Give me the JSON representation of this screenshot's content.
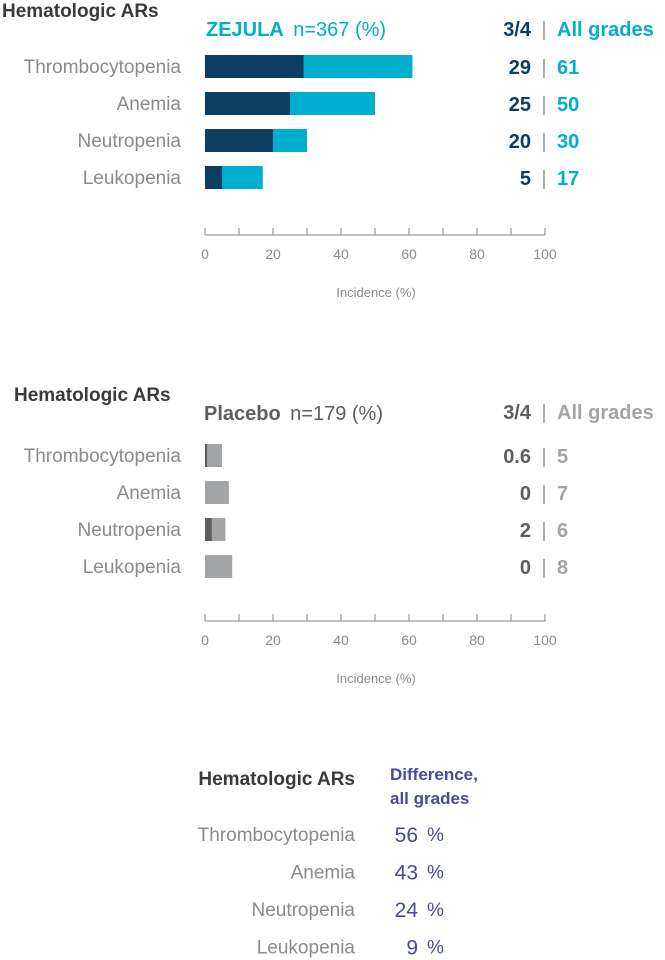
{
  "colors": {
    "zejula_grade34": "#0c3d63",
    "zejula_all": "#00aece",
    "placebo_grade34": "#5e5e5e",
    "placebo_all": "#a3a4a6",
    "category_text": "#8a8a8a",
    "header_text": "#3a3a3a",
    "difference": "#4a4a96"
  },
  "chart_data": [
    {
      "type": "bar",
      "orientation": "horizontal",
      "stacked": "overlay",
      "header": "Hematologic ARs",
      "group_label": "ZEJULA",
      "group_n": "n=367 (%)",
      "col_grade34": "3/4",
      "col_sep": "|",
      "col_all": "All grades",
      "categories": [
        "Thrombocytopenia",
        "Anemia",
        "Neutropenia",
        "Leukopenia"
      ],
      "series": [
        {
          "name": "3/4",
          "values": [
            29,
            25,
            20,
            5
          ],
          "labels": [
            "29",
            "25",
            "20",
            "5"
          ]
        },
        {
          "name": "All grades",
          "values": [
            61,
            50,
            30,
            17
          ],
          "labels": [
            "61",
            "50",
            "30",
            "17"
          ]
        }
      ],
      "xlim": [
        0,
        100
      ],
      "xticks": [
        "0",
        "20",
        "40",
        "60",
        "80",
        "100"
      ],
      "xlabel": "Incidence (%)",
      "grid": false
    },
    {
      "type": "bar",
      "orientation": "horizontal",
      "stacked": "overlay",
      "header": "Hematologic ARs",
      "group_label": "Placebo",
      "group_n": "n=179 (%)",
      "col_grade34": "3/4",
      "col_sep": "|",
      "col_all": "All grades",
      "categories": [
        "Thrombocytopenia",
        "Anemia",
        "Neutropenia",
        "Leukopenia"
      ],
      "series": [
        {
          "name": "3/4",
          "values": [
            0.6,
            0,
            2,
            0
          ],
          "labels": [
            "0.6",
            "0",
            "2",
            "0"
          ]
        },
        {
          "name": "All grades",
          "values": [
            5,
            7,
            6,
            8
          ],
          "labels": [
            "5",
            "7",
            "6",
            "8"
          ]
        }
      ],
      "xlim": [
        0,
        100
      ],
      "xticks": [
        "0",
        "20",
        "40",
        "60",
        "80",
        "100"
      ],
      "xlabel": "Incidence (%)",
      "grid": false
    },
    {
      "type": "table",
      "header": "Hematologic ARs",
      "difference_header": [
        "Difference,",
        "all grades"
      ],
      "rows": [
        {
          "category": "Thrombocytopenia",
          "value": "56",
          "unit": "%"
        },
        {
          "category": "Anemia",
          "value": "43",
          "unit": "%"
        },
        {
          "category": "Neutropenia",
          "value": "24",
          "unit": "%"
        },
        {
          "category": "Leukopenia",
          "value": "9",
          "unit": "%"
        }
      ]
    }
  ]
}
